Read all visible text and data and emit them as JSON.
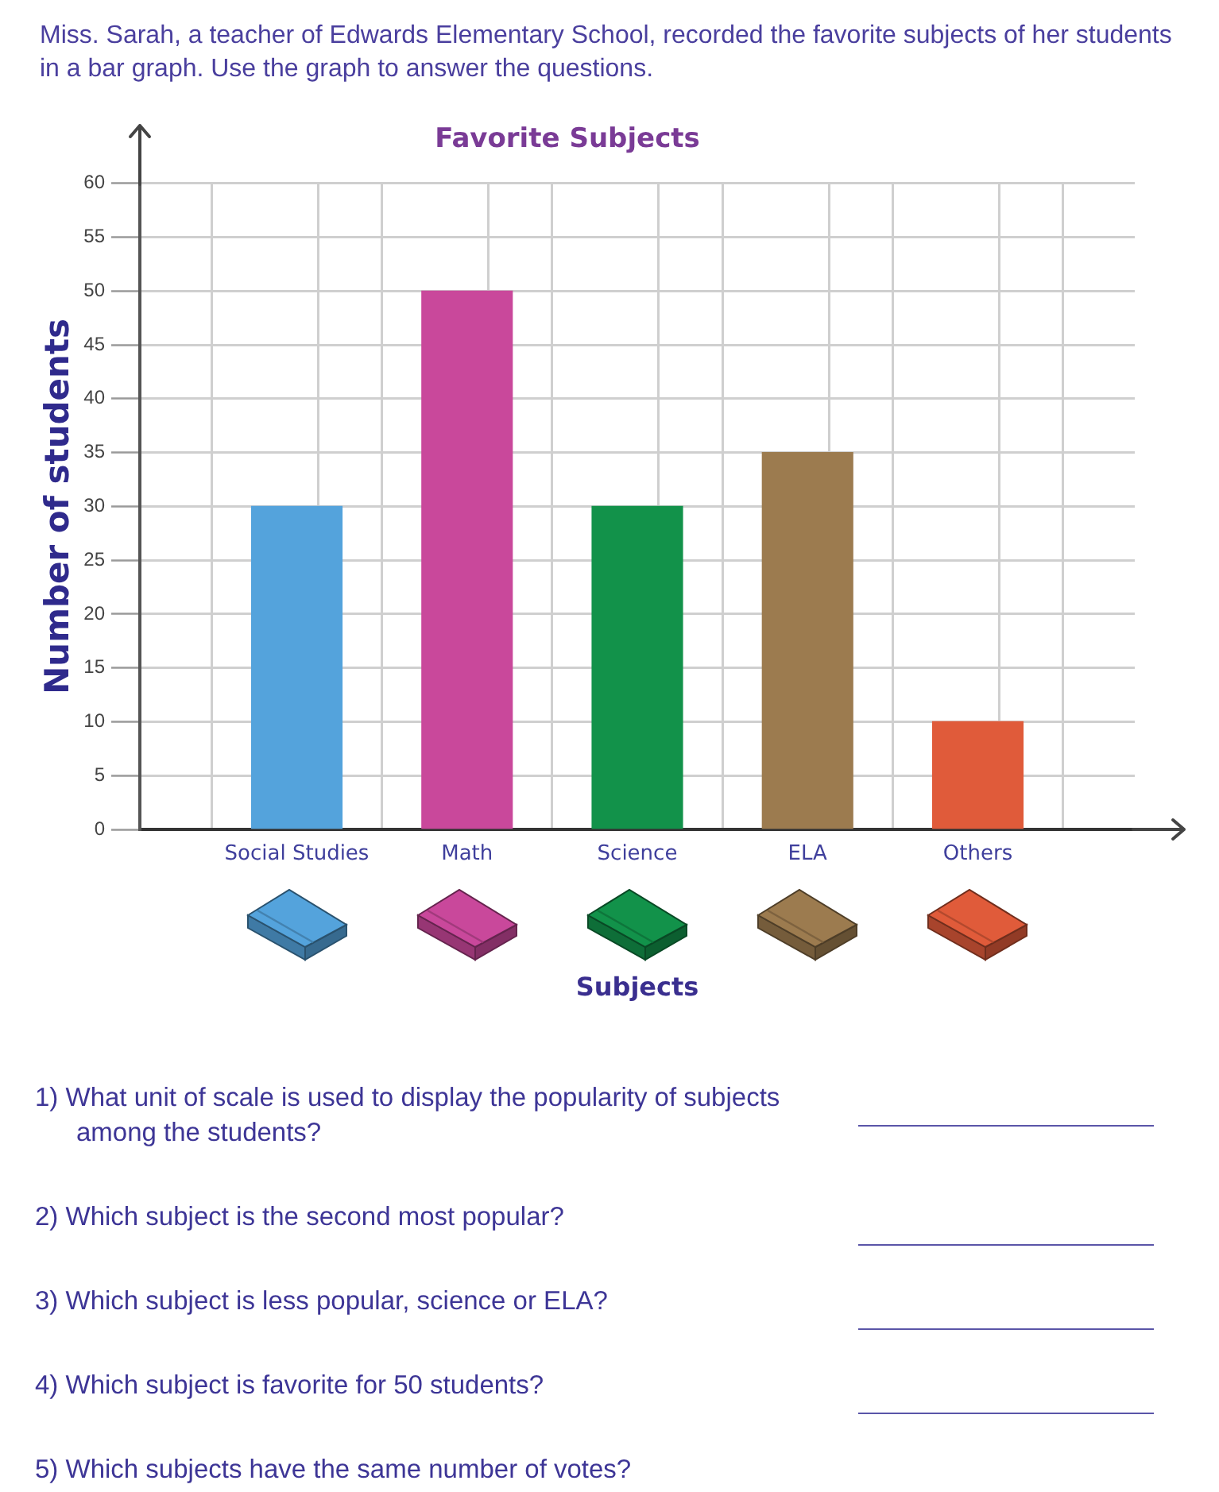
{
  "chart_data": {
    "type": "bar",
    "title": "Favorite Subjects",
    "xlabel": "Subjects",
    "ylabel": "Number of students",
    "categories": [
      "Social Studies",
      "Math",
      "Science",
      "ELA",
      "Others"
    ],
    "values": [
      30,
      50,
      30,
      35,
      10
    ],
    "colors": [
      "#54a3dc",
      "#c9489b",
      "#12924a",
      "#9c7b4f",
      "#e05b3a"
    ],
    "ylim": [
      0,
      60
    ],
    "yticks": [
      0,
      5,
      10,
      15,
      20,
      25,
      30,
      35,
      40,
      45,
      50,
      55,
      60
    ],
    "grid": true,
    "annotations": [
      "Miss. Sarah, a teacher of Edwards Elementary School, recorded the favorite subjects of her students in a bar graph. Use the graph to answer the questions.",
      "1) What unit of scale is used to display the popularity of subjects among the students?",
      "2) Which subject is the second most popular?",
      "3) Which subject is less popular, science or ELA?",
      "4) Which subject is favorite for 50 students?",
      "5) Which subjects have the same number of votes?"
    ]
  }
}
